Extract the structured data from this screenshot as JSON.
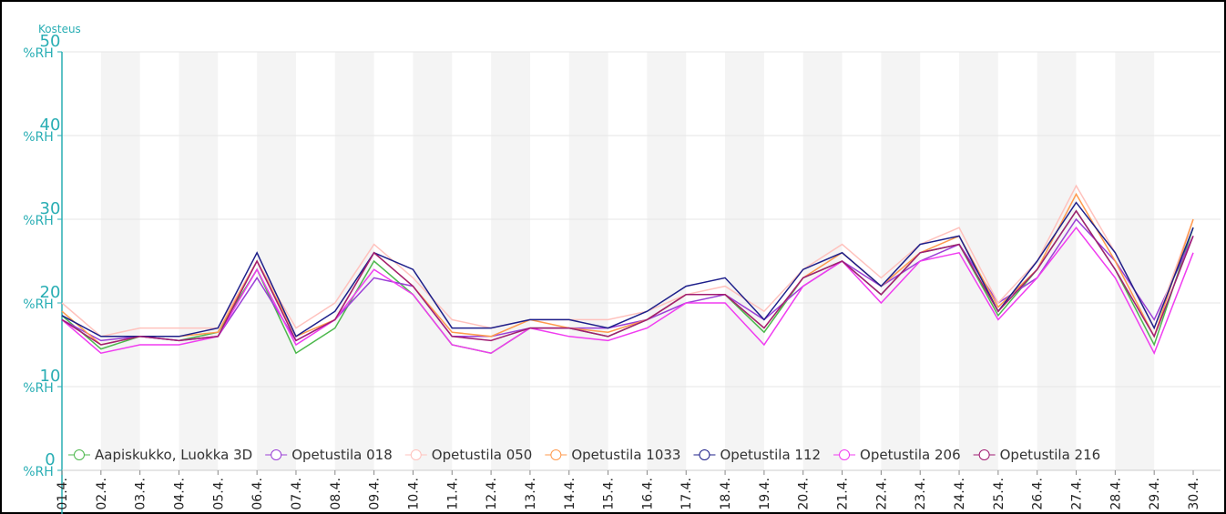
{
  "chart_data": {
    "type": "line",
    "y_title": "Kosteus",
    "y_unit": "%RH",
    "categories": [
      "01.4.",
      "02.4.",
      "03.4.",
      "04.4.",
      "05.4.",
      "06.4.",
      "07.4.",
      "08.4.",
      "09.4.",
      "10.4.",
      "11.4.",
      "12.4.",
      "13.4.",
      "14.4.",
      "15.4.",
      "16.4.",
      "17.4.",
      "18.4.",
      "19.4.",
      "20.4.",
      "21.4.",
      "22.4.",
      "23.4.",
      "24.4.",
      "25.4.",
      "26.4.",
      "27.4.",
      "28.4.",
      "29.4.",
      "30.4."
    ],
    "ylim": [
      0,
      50
    ],
    "yticks": [
      0,
      10,
      20,
      30,
      40,
      50
    ],
    "grid": true,
    "legend": "bottom",
    "series": [
      {
        "name": "Aapiskukko, Luokka 3D",
        "color": "#4cb84c",
        "values": [
          18.5,
          14.5,
          16,
          15.5,
          16.5,
          24,
          14,
          17,
          25,
          21,
          15,
          14,
          17,
          17,
          16,
          18,
          21,
          21,
          16.5,
          23,
          25,
          21,
          26,
          27,
          18.5,
          24,
          31,
          24,
          15,
          29
        ]
      },
      {
        "name": "Opetustila 018",
        "color": "#9b3fd6",
        "values": [
          18,
          15.5,
          16,
          15.5,
          16,
          23,
          15.5,
          18,
          23,
          22,
          16,
          16,
          17,
          17,
          17,
          18,
          20,
          21,
          18,
          22,
          25,
          22,
          25,
          27,
          20,
          23,
          30,
          25,
          18,
          28
        ]
      },
      {
        "name": "Opetustila 050",
        "color": "#ffc2bd",
        "values": [
          20,
          16,
          17,
          17,
          17,
          25,
          17,
          20,
          27,
          23,
          18,
          17,
          18,
          18,
          18,
          19,
          21,
          22,
          19,
          24,
          27,
          23,
          27,
          29,
          20,
          25,
          34,
          26,
          17,
          30
        ]
      },
      {
        "name": "Opetustila 1033",
        "color": "#ff9a4d",
        "values": [
          19,
          15,
          16,
          16,
          16.5,
          25,
          16,
          18,
          26,
          22,
          16.5,
          16,
          18,
          17,
          16.5,
          18,
          21,
          21,
          17,
          23,
          26,
          22,
          26,
          28,
          19.5,
          24,
          33,
          25,
          16,
          30
        ]
      },
      {
        "name": "Opetustila 112",
        "color": "#1d1f8a",
        "values": [
          18.5,
          16,
          16,
          16,
          17,
          26,
          16,
          19,
          26,
          24,
          17,
          17,
          18,
          18,
          17,
          19,
          22,
          23,
          18,
          24,
          26,
          22,
          27,
          28,
          19,
          25,
          32,
          26,
          17,
          29
        ]
      },
      {
        "name": "Opetustila 206",
        "color": "#f03cf0",
        "values": [
          18,
          14,
          15,
          15,
          16,
          24,
          15,
          18,
          24,
          21,
          15,
          14,
          17,
          16,
          15.5,
          17,
          20,
          20,
          15,
          22,
          25,
          20,
          25,
          26,
          18,
          23,
          29,
          23,
          14,
          26
        ]
      },
      {
        "name": "Opetustila 216",
        "color": "#a11d73",
        "values": [
          18,
          15,
          16,
          15.5,
          16,
          25,
          15.5,
          18,
          26,
          22,
          16,
          15.5,
          17,
          17,
          16,
          18,
          21,
          21,
          17,
          23,
          25,
          21,
          26,
          27,
          19,
          24,
          31,
          24,
          16,
          28
        ]
      }
    ]
  }
}
